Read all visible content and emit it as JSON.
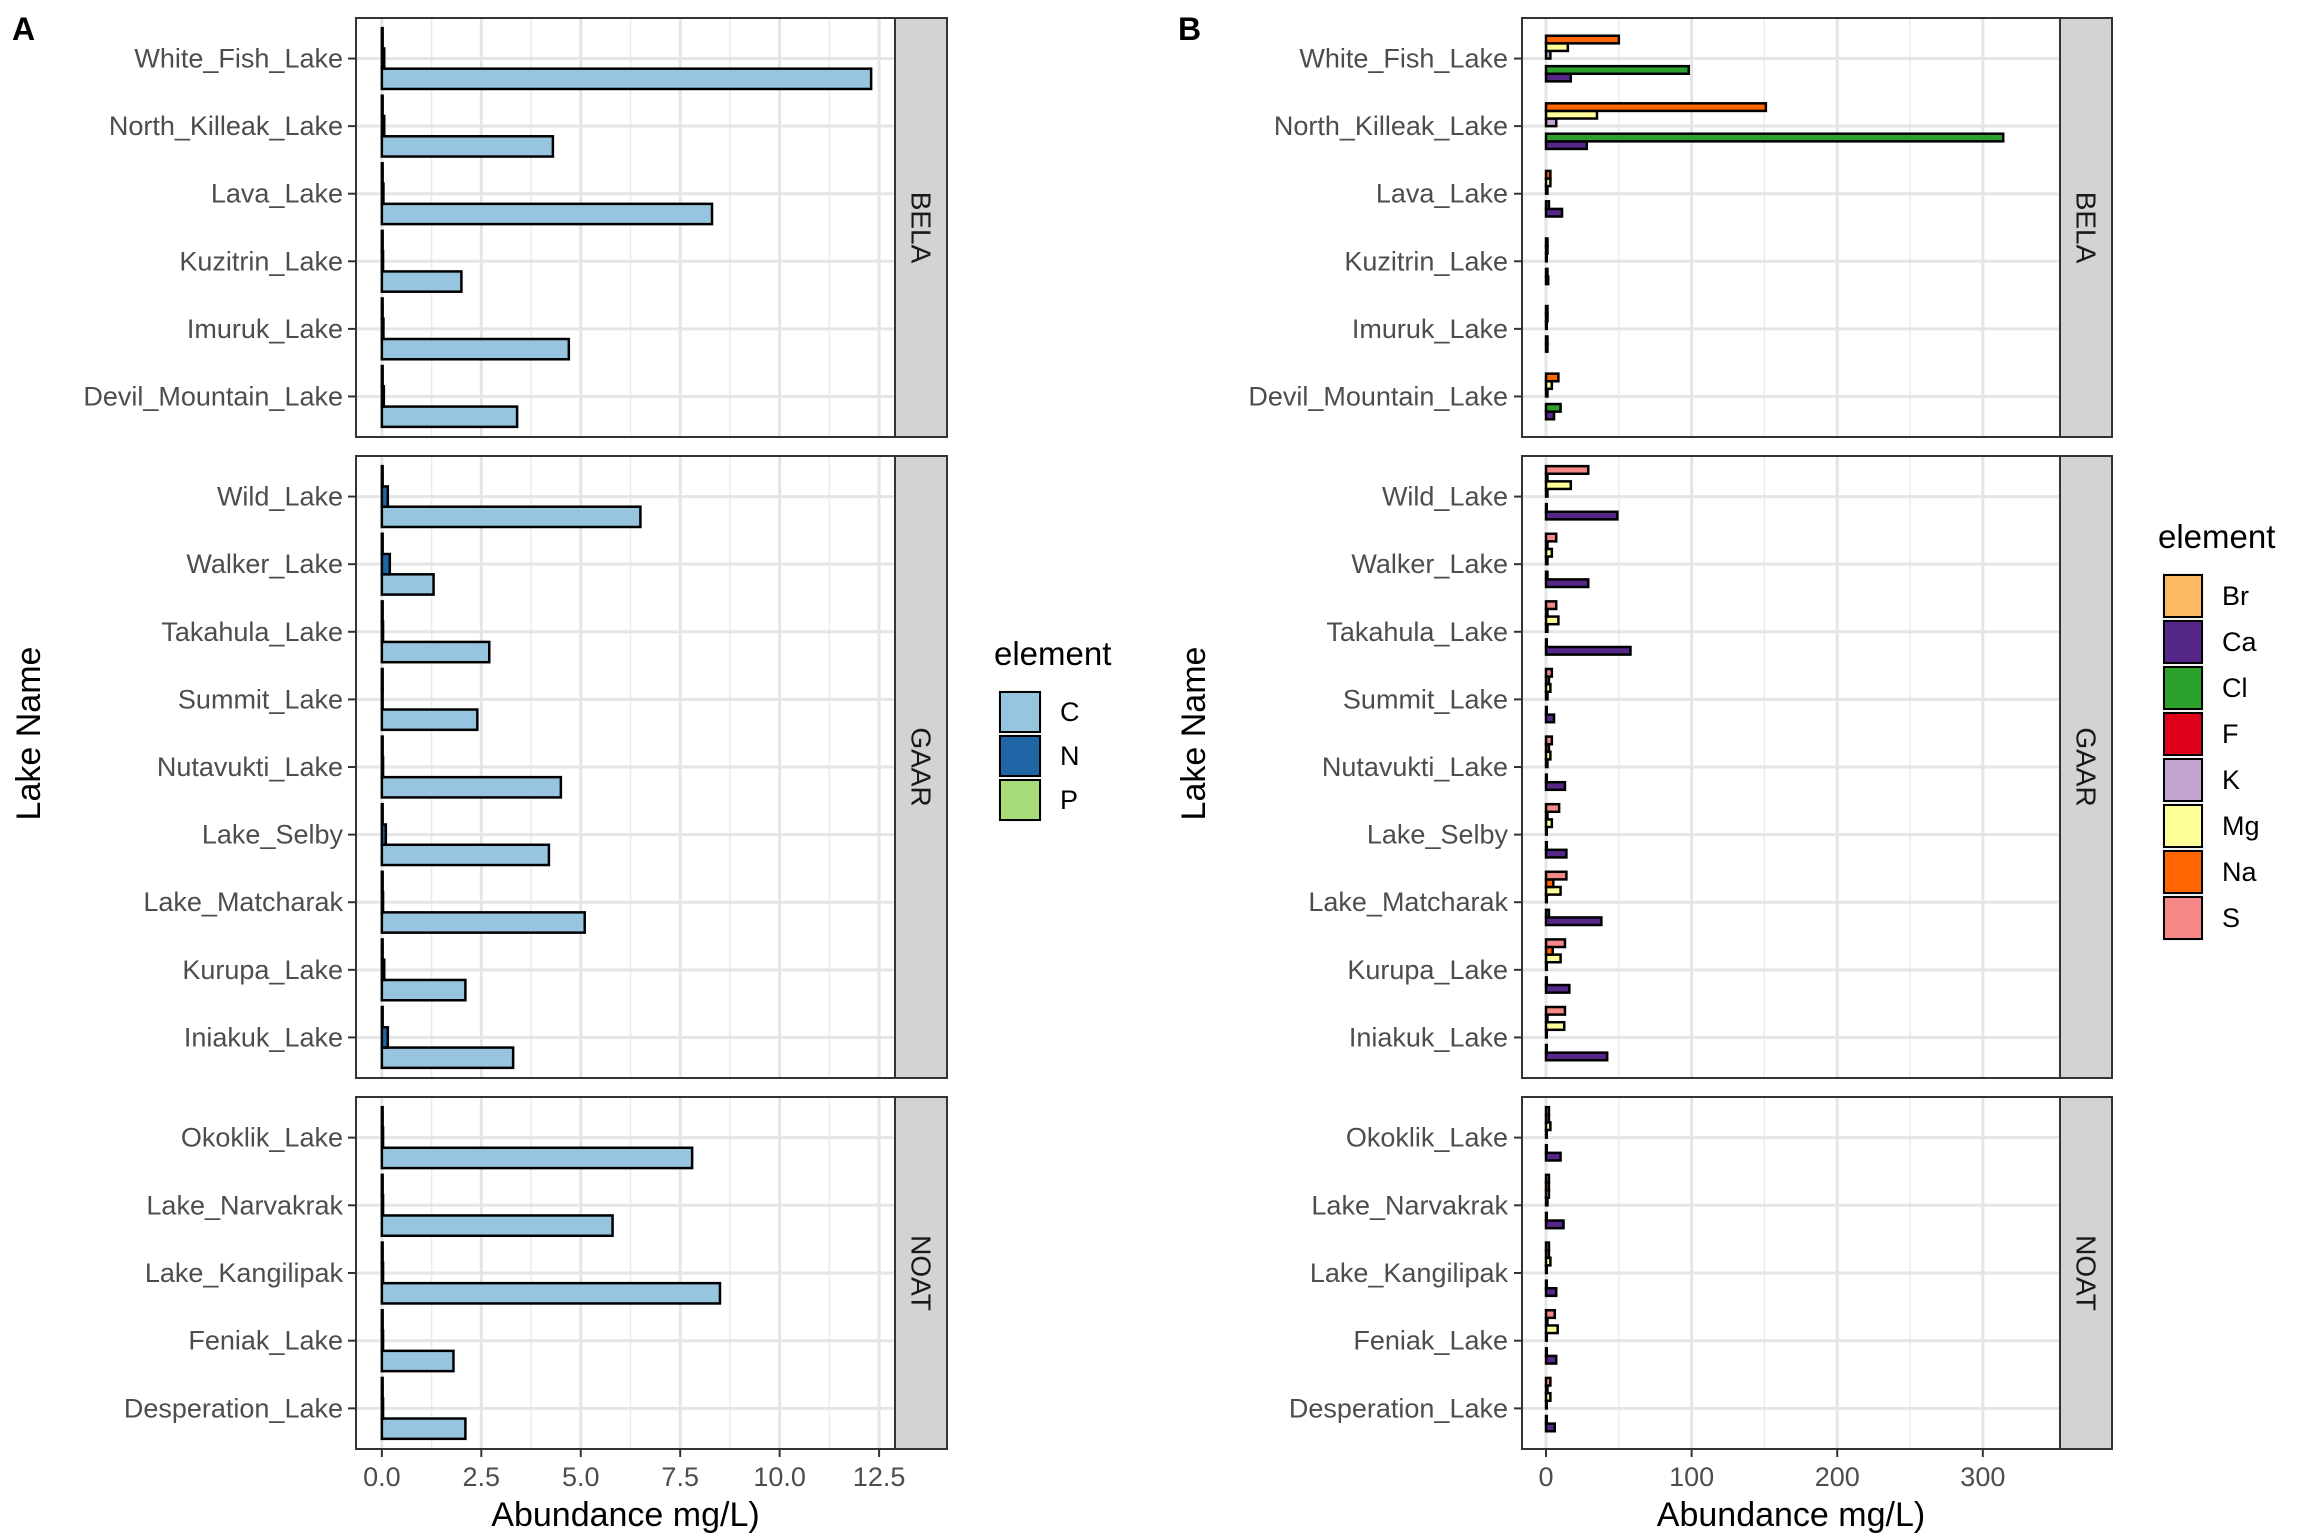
{
  "chart_data": [
    {
      "panel_label": "A",
      "type": "bar",
      "orientation": "horizontal",
      "xlabel": "Abundance mg/L)",
      "ylabel": "Lake Name",
      "xlim": [
        -0.65,
        12.9
      ],
      "xticks": [
        "0.0",
        "2.5",
        "5.0",
        "7.5",
        "10.0",
        "12.5"
      ],
      "xtick_values": [
        0,
        2.5,
        5,
        7.5,
        10,
        12.5
      ],
      "grid": true,
      "legend": {
        "title": "element",
        "placement": "right",
        "entries": [
          "C",
          "N",
          "P"
        ]
      },
      "colors": {
        "C": "#97c4de",
        "N": "#1f65a6",
        "P": "#a8dc78"
      },
      "facets": [
        {
          "name": "BELA",
          "lakes": [
            "Devil_Mountain_Lake",
            "Imuruk_Lake",
            "Kuzitrin_Lake",
            "Lava_Lake",
            "North_Killeak_Lake",
            "White_Fish_Lake"
          ],
          "values": {
            "C": [
              3.4,
              4.7,
              2.0,
              8.3,
              4.3,
              12.3
            ],
            "N": [
              0.05,
              0.04,
              0.03,
              0.04,
              0.06,
              0.06
            ],
            "P": [
              0.02,
              0.02,
              0.02,
              0.02,
              0.02,
              0.02
            ]
          }
        },
        {
          "name": "GAAR",
          "lakes": [
            "Iniakuk_Lake",
            "Kurupa_Lake",
            "Lake_Matcharak",
            "Lake_Selby",
            "Nutavukti_Lake",
            "Summit_Lake",
            "Takahula_Lake",
            "Walker_Lake",
            "Wild_Lake"
          ],
          "values": {
            "C": [
              3.3,
              2.1,
              5.1,
              4.2,
              4.5,
              2.4,
              2.7,
              1.3,
              6.5
            ],
            "N": [
              0.15,
              0.06,
              0.03,
              0.1,
              0.03,
              0.02,
              0.03,
              0.2,
              0.15
            ],
            "P": [
              0.02,
              0.02,
              0.02,
              0.02,
              0.02,
              0.02,
              0.02,
              0.02,
              0.02
            ]
          }
        },
        {
          "name": "NOAT",
          "lakes": [
            "Desperation_Lake",
            "Feniak_Lake",
            "Lake_Kangilipak",
            "Lake_Narvakrak",
            "Okoklik_Lake"
          ],
          "values": {
            "C": [
              2.1,
              1.8,
              8.5,
              5.8,
              7.8
            ],
            "N": [
              0.03,
              0.03,
              0.03,
              0.03,
              0.03
            ],
            "P": [
              0.02,
              0.02,
              0.02,
              0.02,
              0.02
            ]
          }
        }
      ]
    },
    {
      "panel_label": "B",
      "type": "bar",
      "orientation": "horizontal",
      "xlabel": "Abundance mg/L)",
      "ylabel": "Lake Name",
      "xlim": [
        -16.5,
        353
      ],
      "xticks": [
        "0",
        "100",
        "200",
        "300"
      ],
      "xtick_values": [
        0,
        100,
        200,
        300
      ],
      "grid": true,
      "legend": {
        "title": "element",
        "placement": "right",
        "entries": [
          "Br",
          "Ca",
          "Cl",
          "F",
          "K",
          "Mg",
          "Na",
          "S"
        ]
      },
      "colors": {
        "Br": "#fdb863",
        "Ca": "#542788",
        "Cl": "#2ca02c",
        "F": "#e0001b",
        "K": "#c2a5cf",
        "Mg": "#ffff99",
        "Na": "#ff6600",
        "S": "#f78888"
      },
      "facets": [
        {
          "name": "BELA",
          "lakes": [
            "Devil_Mountain_Lake",
            "Imuruk_Lake",
            "Kuzitrin_Lake",
            "Lava_Lake",
            "North_Killeak_Lake",
            "White_Fish_Lake"
          ],
          "values": {
            "Br": [
              0,
              0,
              0,
              0,
              0,
              0
            ],
            "Ca": [
              5.5,
              1,
              1.5,
              11,
              28,
              17
            ],
            "Cl": [
              10,
              1,
              1,
              2,
              314,
              98
            ],
            "F": [
              0,
              0,
              0,
              0,
              0,
              0
            ],
            "K": [
              1,
              0.5,
              0.5,
              1,
              7,
              3
            ],
            "Mg": [
              4,
              1,
              1,
              3,
              35,
              15
            ],
            "Na": [
              8.5,
              1,
              1,
              3,
              151,
              50
            ],
            "S": [
              0,
              0,
              0,
              0,
              0,
              0
            ]
          }
        },
        {
          "name": "GAAR",
          "lakes": [
            "Iniakuk_Lake",
            "Kurupa_Lake",
            "Lake_Matcharak",
            "Lake_Selby",
            "Nutavukti_Lake",
            "Summit_Lake",
            "Takahula_Lake",
            "Walker_Lake",
            "Wild_Lake"
          ],
          "values": {
            "Br": [
              0,
              0,
              0,
              0,
              0,
              0,
              0,
              0,
              0
            ],
            "Ca": [
              42,
              16,
              38,
              14,
              13,
              5.5,
              58,
              29,
              49
            ],
            "Cl": [
              0.5,
              0.5,
              2,
              0.5,
              0.5,
              0.5,
              0.5,
              1,
              0.5
            ],
            "F": [
              0,
              0,
              0,
              0,
              0,
              0,
              0,
              0,
              0
            ],
            "K": [
              0.5,
              0.5,
              0.5,
              0.5,
              1,
              1,
              1,
              1,
              1
            ],
            "Mg": [
              12.5,
              10,
              10,
              4,
              3,
              3,
              8.5,
              4,
              17
            ],
            "Na": [
              1,
              4.6,
              5,
              1,
              2,
              2,
              1,
              1,
              1
            ],
            "S": [
              13,
              13,
              14,
              9,
              4,
              4,
              7,
              7,
              29
            ]
          }
        },
        {
          "name": "NOAT",
          "lakes": [
            "Desperation_Lake",
            "Feniak_Lake",
            "Lake_Kangilipak",
            "Lake_Narvakrak",
            "Okoklik_Lake"
          ],
          "values": {
            "Br": [
              0,
              0,
              0,
              0,
              0
            ],
            "Ca": [
              6,
              7,
              7,
              12,
              10
            ],
            "Cl": [
              0.5,
              0.5,
              0.5,
              0.5,
              0.5
            ],
            "F": [
              0,
              0,
              0,
              0,
              0
            ],
            "K": [
              0.5,
              0.5,
              0.5,
              1,
              0.5
            ],
            "Mg": [
              3,
              8,
              3,
              2,
              3
            ],
            "Na": [
              1,
              1,
              2,
              2,
              2
            ],
            "S": [
              3,
              6,
              2,
              2,
              2
            ]
          }
        }
      ]
    }
  ]
}
